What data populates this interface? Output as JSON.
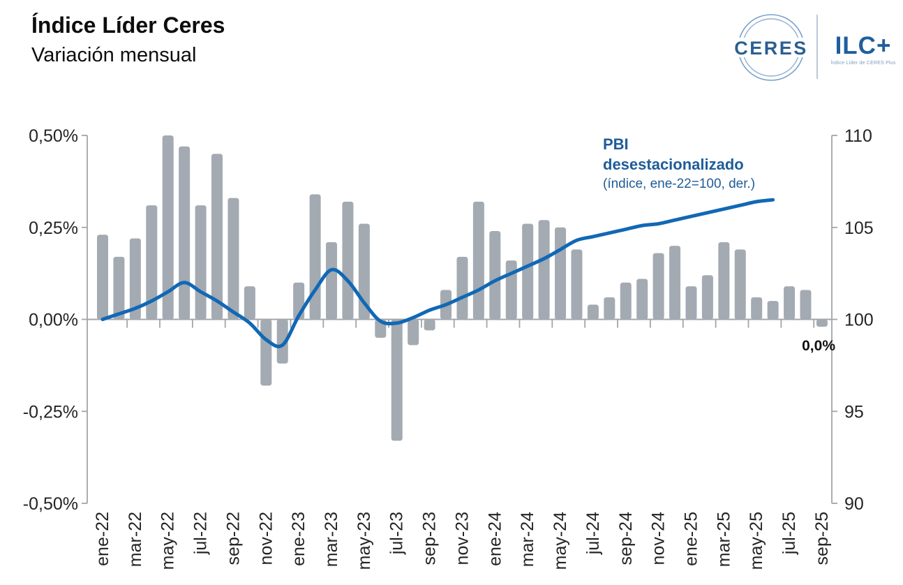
{
  "header": {
    "title": "Índice Líder Ceres",
    "subtitle": "Variación mensual"
  },
  "logo": {
    "brand": "CERES",
    "product": "ILC+",
    "tagline": "Índice Líder de CERES Plus",
    "brand_color": "#2b5f92",
    "ring_color": "#7ba0c9"
  },
  "chart_data": {
    "type": "bar+line",
    "title": "Índice Líder Ceres — Variación mensual",
    "categories": [
      "ene-22",
      "feb-22",
      "mar-22",
      "abr-22",
      "may-22",
      "jun-22",
      "jul-22",
      "ago-22",
      "sep-22",
      "oct-22",
      "nov-22",
      "dic-22",
      "ene-23",
      "feb-23",
      "mar-23",
      "abr-23",
      "may-23",
      "jun-23",
      "jul-23",
      "ago-23",
      "sep-23",
      "oct-23",
      "nov-23",
      "dic-23",
      "ene-24",
      "feb-24",
      "mar-24",
      "abr-24",
      "may-24",
      "jun-24",
      "jul-24",
      "ago-24",
      "sep-24",
      "oct-24",
      "nov-24",
      "dic-24",
      "ene-25",
      "feb-25",
      "mar-25",
      "abr-25",
      "may-25",
      "jun-25",
      "jul-25",
      "ago-25",
      "sep-25"
    ],
    "bars": {
      "axis": "left",
      "unit": "%",
      "color": "#a3aab2",
      "values": [
        0.23,
        0.17,
        0.22,
        0.31,
        0.5,
        0.47,
        0.31,
        0.45,
        0.33,
        0.09,
        -0.18,
        -0.12,
        0.1,
        0.34,
        0.21,
        0.32,
        0.26,
        -0.05,
        -0.33,
        -0.07,
        -0.03,
        0.08,
        0.17,
        0.32,
        0.24,
        0.16,
        0.26,
        0.27,
        0.25,
        0.19,
        0.04,
        0.06,
        0.1,
        0.11,
        0.18,
        0.2,
        0.09,
        0.12,
        0.21,
        0.19,
        0.06,
        0.05,
        0.09,
        0.08,
        -0.02
      ]
    },
    "line": {
      "axis": "right",
      "label": "PBI desestacionalizado",
      "color": "#1168b5",
      "values": [
        100.0,
        100.3,
        100.6,
        101.0,
        101.5,
        102.0,
        101.5,
        101.0,
        100.4,
        99.8,
        98.9,
        98.6,
        100.2,
        101.6,
        102.7,
        102.1,
        100.9,
        99.9,
        99.8,
        100.1,
        100.5,
        100.8,
        101.2,
        101.6,
        102.1,
        102.5,
        102.9,
        103.3,
        103.8,
        104.3,
        104.5,
        104.7,
        104.9,
        105.1,
        105.2,
        105.4,
        105.6,
        105.8,
        106.0,
        106.2,
        106.4,
        106.5,
        null,
        null,
        null
      ]
    },
    "left_axis": {
      "tick_labels": [
        "0,50%",
        "0,25%",
        "0,00%",
        "-0,25%",
        "-0,50%"
      ],
      "tick_values": [
        0.5,
        0.25,
        0,
        -0.25,
        -0.5
      ],
      "max": 0.5,
      "min": -0.5
    },
    "right_axis": {
      "tick_labels": [
        "110",
        "105",
        "100",
        "95",
        "90"
      ],
      "tick_values": [
        110,
        105,
        100,
        95,
        90
      ],
      "max": 110,
      "min": 90
    },
    "x_tick_labels": [
      "ene-22",
      "mar-22",
      "may-22",
      "jul-22",
      "sep-22",
      "nov-22",
      "ene-23",
      "mar-23",
      "may-23",
      "jul-23",
      "sep-23",
      "nov-23",
      "ene-24",
      "mar-24",
      "may-24",
      "jul-24",
      "sep-24",
      "nov-24",
      "ene-25",
      "mar-25",
      "may-25",
      "jul-25",
      "sep-25"
    ],
    "x_label_every": 2,
    "grid": "off",
    "legend": {
      "title": "PBI desestacionalizado",
      "note": "(índice, ene-22=100, der.)",
      "position": "top-right-inside"
    },
    "annotation": {
      "text": "0,0%",
      "category": "sep-25"
    }
  }
}
